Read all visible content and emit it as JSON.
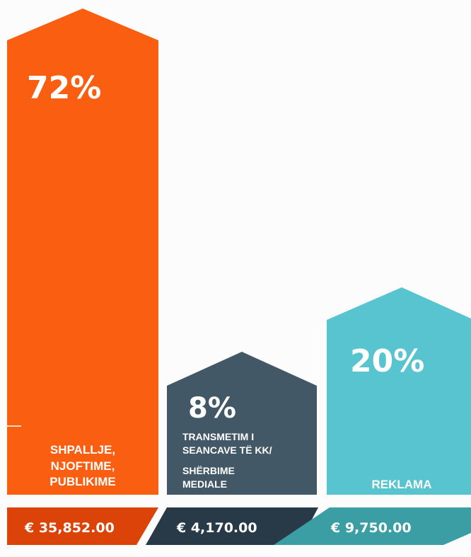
{
  "chart_data": {
    "type": "bar",
    "categories": [
      "SHPALLJE, NJOFTIME, PUBLIKIME",
      "TRANSMETIM I SEANCAVE TË KK/ SHËRBIME MEDIALE",
      "REKLAMA"
    ],
    "values": [
      72,
      8,
      20
    ],
    "value_unit": "%",
    "amounts": [
      "€ 35,852.00",
      "€ 4,170.00",
      "€ 9,750.00"
    ],
    "bars": [
      {
        "percent_label": "72%",
        "label_lines": [
          "SHPALLJE,",
          "NJOFTIME,",
          "PUBLIKIME"
        ],
        "amount": "€ 35,852.00"
      },
      {
        "percent_label": "8%",
        "label_lines": [
          "TRANSMETIM I",
          "SEANCAVE TË KK/",
          "SHËRBIME",
          "MEDIALE"
        ],
        "amount": "€ 4,170.00"
      },
      {
        "percent_label": "20%",
        "label_lines": [
          "REKLAMA"
        ],
        "amount": "€ 9,750.00"
      }
    ],
    "colors": {
      "bars": [
        "#fa5e11",
        "#435867",
        "#58c4cf"
      ],
      "footers": [
        "#dc4308",
        "#283a48",
        "#3c9ea5"
      ]
    },
    "grid": false,
    "legend": "none"
  }
}
